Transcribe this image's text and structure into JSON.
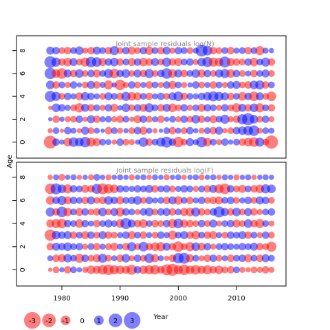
{
  "chart_data": [
    {
      "type": "bubble",
      "title": "Joint sample residuals log(N)",
      "x": [
        1978,
        1979,
        1980,
        1981,
        1982,
        1983,
        1984,
        1985,
        1986,
        1987,
        1988,
        1989,
        1990,
        1991,
        1992,
        1993,
        1994,
        1995,
        1996,
        1997,
        1998,
        1999,
        2000,
        2001,
        2002,
        2003,
        2004,
        2005,
        2006,
        2007,
        2008,
        2009,
        2010,
        2011,
        2012,
        2013,
        2014,
        2015,
        2016
      ],
      "xlim": [
        1972.2,
        2018.5
      ],
      "ylim": [
        -1.4,
        9.3
      ],
      "yticks": [
        0,
        2,
        4,
        6,
        8
      ],
      "positive_color": "#0000ff",
      "negative_color": "#ff0000",
      "series": [
        {
          "y": 0,
          "values": [
            -1.8,
            0.6,
            0.3,
            -0.8,
            1.0,
            0.8,
            1.2,
            -0.9,
            -0.7,
            0.5,
            0.4,
            -0.3,
            0.6,
            -0.5,
            -0.4,
            0.3,
            1.0,
            -0.6,
            0.5,
            0.9,
            1.3,
            0.6,
            -1.2,
            -0.5,
            0.7,
            0.4,
            1.2,
            -0.8,
            0.5,
            -0.4,
            0.6,
            0.3,
            0.5,
            -0.6,
            -0.8,
            -1.0,
            0.9,
            -0.5,
            -1.9
          ]
        },
        {
          "y": 1,
          "values": [
            -0.3,
            0.5,
            -0.2,
            0.6,
            0.4,
            -0.3,
            0.7,
            -0.5,
            0.4,
            0.2,
            -0.6,
            0.5,
            -0.4,
            0.3,
            -0.5,
            0.6,
            -0.7,
            0.4,
            -0.3,
            0.2,
            0.5,
            -0.6,
            0.4,
            -0.5,
            0.6,
            0.3,
            -0.4,
            0.5,
            -0.6,
            0.7,
            -0.3,
            -0.5,
            0.6,
            0.8,
            1.0,
            1.2,
            -0.4,
            0.5,
            0.4
          ]
        },
        {
          "y": 2,
          "values": [
            0.2,
            -0.6,
            0.3,
            -0.4,
            -0.5,
            0.6,
            -0.3,
            0.7,
            -0.6,
            0.4,
            0.5,
            -0.4,
            -0.6,
            0.5,
            -0.3,
            -0.7,
            0.6,
            -0.5,
            0.4,
            -0.6,
            0.3,
            0.5,
            -0.4,
            0.6,
            -0.5,
            0.8,
            -0.6,
            0.4,
            -0.7,
            0.5,
            0.9,
            -0.4,
            -0.6,
            1.1,
            1.6,
            0.8,
            -0.5,
            0.6,
            -0.4
          ]
        },
        {
          "y": 3,
          "values": [
            -0.2,
            0.8,
            0.6,
            0.4,
            -0.5,
            -0.9,
            0.7,
            -0.6,
            0.5,
            -0.4,
            0.6,
            -0.7,
            0.3,
            0.8,
            -0.5,
            0.6,
            -0.7,
            0.9,
            0.5,
            -0.6,
            0.7,
            -0.8,
            -0.5,
            0.6,
            -0.4,
            0.5,
            -0.7,
            0.6,
            0.5,
            -0.4,
            0.6,
            -0.5,
            -0.9,
            0.7,
            -0.6,
            0.8,
            -0.9,
            0.5,
            -0.6
          ]
        },
        {
          "y": 4,
          "values": [
            1.3,
            0.9,
            -0.5,
            0.6,
            0.4,
            -0.7,
            0.8,
            0.6,
            0.4,
            -0.5,
            0.7,
            0.5,
            -0.6,
            0.9,
            -0.8,
            -0.7,
            0.5,
            -0.6,
            0.4,
            0.6,
            -0.5,
            0.7,
            1.0,
            -0.6,
            0.5,
            0.4,
            0.6,
            0.8,
            1.1,
            0.9,
            0.7,
            -0.6,
            0.5,
            -0.8,
            0.6,
            -1.0,
            0.7,
            -0.5,
            -1.0
          ]
        },
        {
          "y": 5,
          "values": [
            0.8,
            -0.6,
            0.5,
            -0.4,
            0.6,
            0.3,
            -0.5,
            0.7,
            -0.6,
            0.4,
            -0.9,
            0.3,
            -1.2,
            -0.4,
            0.6,
            -0.5,
            0.4,
            -0.6,
            0.5,
            -0.4,
            0.6,
            -0.7,
            0.5,
            -0.4,
            0.3,
            0.6,
            -0.5,
            0.4,
            -0.6,
            0.5,
            -0.4,
            0.6,
            0.7,
            -0.5,
            -0.6,
            0.8,
            0.9,
            -0.6,
            0.5
          ]
        },
        {
          "y": 6,
          "values": [
            1.4,
            -0.8,
            -1.2,
            0.7,
            -0.6,
            0.8,
            -0.5,
            0.6,
            -0.7,
            0.5,
            0.9,
            -1.0,
            0.6,
            0.8,
            -0.5,
            0.7,
            -0.6,
            0.9,
            -0.5,
            0.6,
            1.2,
            -0.8,
            0.7,
            -0.6,
            0.5,
            0.8,
            -0.7,
            0.6,
            -0.5,
            0.7,
            0.9,
            -0.8,
            0.6,
            -0.5,
            0.4,
            -0.6,
            0.5,
            0.7,
            -0.5
          ]
        },
        {
          "y": 7,
          "values": [
            1.5,
            0.9,
            -0.6,
            -0.8,
            0.7,
            -0.5,
            -0.9,
            1.2,
            1.0,
            -0.7,
            0.6,
            0.8,
            -0.6,
            0.5,
            -0.7,
            0.6,
            -0.8,
            -0.6,
            0.7,
            -0.5,
            0.9,
            -0.6,
            -0.7,
            0.5,
            0.6,
            -0.4,
            0.8,
            1.1,
            -0.9,
            -0.8,
            1.3,
            -0.7,
            -0.6,
            -0.5,
            0.6,
            -0.8,
            0.5,
            0.9,
            -0.6
          ]
        },
        {
          "y": 8,
          "values": [
            0.7,
            0.6,
            -0.5,
            -0.6,
            0.5,
            0.8,
            -0.4,
            -0.6,
            0.7,
            0.5,
            -0.6,
            0.9,
            -0.5,
            0.6,
            -0.7,
            -0.5,
            0.6,
            -0.8,
            0.5,
            -0.6,
            0.7,
            -0.4,
            0.6,
            0.5,
            -0.5,
            0.4,
            1.5,
            1.0,
            -0.6,
            -0.5,
            0.5,
            -0.6,
            0.4,
            0.5,
            -0.6,
            0.5,
            -0.9,
            0.4,
            0.3
          ]
        }
      ]
    },
    {
      "type": "bubble",
      "title": "Joint sample residuals log(F)",
      "x": [
        1978,
        1979,
        1980,
        1981,
        1982,
        1983,
        1984,
        1985,
        1986,
        1987,
        1988,
        1989,
        1990,
        1991,
        1992,
        1993,
        1994,
        1995,
        1996,
        1997,
        1998,
        1999,
        2000,
        2001,
        2002,
        2003,
        2004,
        2005,
        2006,
        2007,
        2008,
        2009,
        2010,
        2011,
        2012,
        2013,
        2014,
        2015,
        2016
      ],
      "xlim": [
        1972.2,
        2018.5
      ],
      "ylim": [
        -1.4,
        9.3
      ],
      "yticks": [
        0,
        2,
        4,
        6,
        8
      ],
      "xticks": [
        1980,
        1990,
        2000,
        2010
      ],
      "positive_color": "#0000ff",
      "negative_color": "#ff0000",
      "series": [
        {
          "y": 0,
          "values": [
            -0.2,
            -0.5,
            0.3,
            -0.6,
            0.5,
            0.3,
            -0.4,
            -0.8,
            -0.7,
            -1.0,
            -1.2,
            -0.9,
            -0.8,
            -0.7,
            -1.1,
            0.6,
            -0.8,
            -0.9,
            -1.0,
            -0.6,
            -1.3,
            -1.5,
            -0.9,
            -1.2,
            -0.8,
            -1.0,
            -0.7,
            -0.9,
            -0.6,
            -0.8,
            -0.5,
            -0.6,
            0.5,
            -0.4,
            -0.3,
            -0.5,
            -0.4,
            -0.6,
            -0.4
          ]
        },
        {
          "y": 1,
          "values": [
            0.4,
            -0.6,
            -0.7,
            0.8,
            0.5,
            -0.9,
            0.6,
            -0.5,
            -0.7,
            0.9,
            -0.5,
            0.4,
            -0.6,
            0.8,
            -0.4,
            0.6,
            -0.5,
            1.0,
            -0.7,
            0.4,
            -0.3,
            -0.6,
            1.2,
            1.3,
            -0.7,
            0.5,
            -0.4,
            -0.6,
            0.6,
            -0.5,
            0.4,
            -0.6,
            0.5,
            0.6,
            -0.7,
            0.5,
            -0.6,
            0.7,
            0.5
          ]
        },
        {
          "y": 2,
          "values": [
            -0.6,
            0.7,
            0.6,
            0.8,
            0.5,
            0.6,
            -0.4,
            0.5,
            -0.6,
            0.4,
            -0.5,
            -0.7,
            0.4,
            -0.6,
            0.9,
            -0.5,
            1.0,
            -0.6,
            -0.8,
            -0.9,
            0.7,
            -0.6,
            -1.2,
            -0.5,
            -0.9,
            0.8,
            -0.7,
            0.6,
            -0.4,
            0.5,
            0.6,
            0.5,
            0.4,
            0.6,
            0.5,
            0.7,
            -0.6,
            -0.5,
            -1.1
          ]
        },
        {
          "y": 3,
          "values": [
            -1.4,
            0.8,
            0.6,
            0.7,
            -0.6,
            0.5,
            -0.7,
            0.6,
            -0.5,
            0.7,
            -0.6,
            -0.5,
            0.4,
            0.6,
            -0.7,
            0.5,
            -0.6,
            0.4,
            -0.5,
            0.6,
            0.4,
            -0.9,
            0.5,
            0.7,
            -0.6,
            -0.8,
            0.5,
            -0.6,
            -0.7,
            0.4,
            -0.5,
            0.6,
            0.5,
            0.7,
            -0.6,
            0.5,
            -0.4,
            0.6,
            -0.5
          ]
        },
        {
          "y": 4,
          "values": [
            -0.7,
            -0.9,
            -1.0,
            0.6,
            0.5,
            -0.8,
            0.6,
            0.4,
            -0.6,
            0.5,
            0.7,
            0.5,
            -0.8,
            1.3,
            0.7,
            -0.6,
            -0.8,
            0.5,
            -0.6,
            -0.5,
            0.6,
            -0.9,
            1.0,
            -0.7,
            -0.6,
            -0.5,
            0.6,
            -0.5,
            0.7,
            -0.4,
            0.5,
            0.6,
            -0.7,
            -0.5,
            0.8,
            -0.6,
            -0.9,
            0.5,
            -0.4
          ]
        },
        {
          "y": 5,
          "values": [
            0.9,
            -0.6,
            1.2,
            -0.8,
            0.5,
            -0.7,
            0.6,
            -0.5,
            -0.6,
            0.8,
            -0.5,
            0.7,
            -0.9,
            0.6,
            0.5,
            -0.4,
            0.6,
            0.8,
            -0.5,
            0.6,
            0.7,
            -0.6,
            0.5,
            -0.7,
            -0.8,
            0.9,
            -0.6,
            -0.5,
            0.6,
            1.3,
            0.7,
            -0.6,
            0.8,
            -0.5,
            0.7,
            -0.6,
            -0.4,
            0.5,
            0.6
          ]
        },
        {
          "y": 6,
          "values": [
            -0.8,
            0.6,
            0.9,
            -0.7,
            0.6,
            0.5,
            -0.6,
            0.7,
            -0.5,
            -0.6,
            0.8,
            0.6,
            -0.7,
            0.5,
            0.6,
            0.8,
            -0.5,
            0.6,
            0.4,
            0.5,
            -0.6,
            0.7,
            -0.8,
            0.5,
            -0.6,
            0.4,
            0.6,
            -0.5,
            -0.6,
            -0.7,
            0.5,
            0.6,
            -0.5,
            0.4,
            0.6,
            -0.5,
            0.7,
            0.6,
            -0.5
          ]
        },
        {
          "y": 7,
          "values": [
            -1.2,
            1.3,
            0.8,
            -0.9,
            0.6,
            0.5,
            -0.7,
            -0.6,
            1.1,
            -1.3,
            -1.0,
            -0.8,
            0.6,
            0.5,
            0.4,
            0.6,
            0.5,
            0.7,
            -0.6,
            0.5,
            0.6,
            -0.5,
            0.4,
            0.6,
            0.5,
            -0.4,
            0.5,
            -0.6,
            0.7,
            -0.9,
            -1.2,
            0.6,
            -0.5,
            -0.7,
            0.5,
            -0.6,
            -0.8,
            0.9,
            0.8
          ]
        },
        {
          "y": 8,
          "values": [
            -0.3,
            0.4,
            -0.5,
            0.3,
            0.4,
            -0.3,
            0.3,
            -0.4,
            0.5,
            0.3,
            -0.4,
            0.3,
            0.4,
            0.3,
            -0.4,
            0.3,
            0.4,
            -0.3,
            0.4,
            0.3,
            -0.4,
            0.3,
            0.4,
            -0.3,
            0.3,
            0.4,
            -0.4,
            0.3,
            0.4,
            -0.3,
            0.4,
            0.3,
            -0.4,
            0.3,
            0.4,
            -0.3,
            0.3,
            0.4,
            0.3
          ]
        }
      ]
    }
  ],
  "y_label": "Age",
  "x_label": "Year",
  "size_legend": [
    -3,
    -2,
    -1,
    0,
    1,
    2,
    3
  ]
}
